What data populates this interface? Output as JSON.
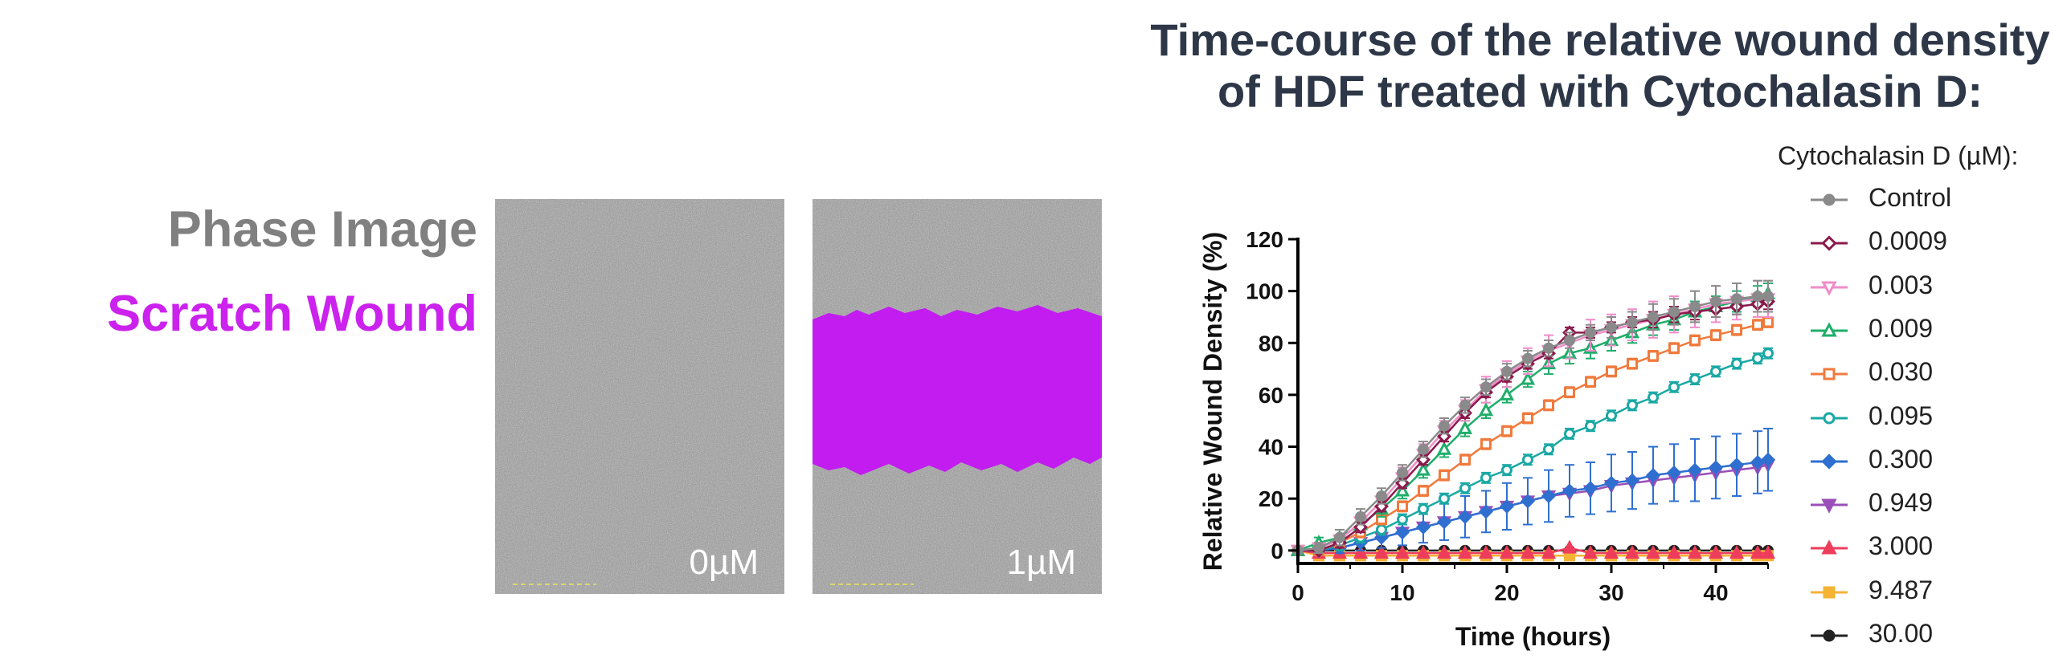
{
  "labels": {
    "phase": "Phase Image",
    "scratch": "Scratch Wound",
    "scratch_color": "#cc22ee"
  },
  "panels": [
    {
      "label": "0µM",
      "mask": false
    },
    {
      "label": "1µM",
      "mask": true
    }
  ],
  "mask_color": "#c21cf0",
  "chart_data": {
    "type": "line",
    "title": "Time-course of the relative wound density of HDF treated with Cytochalasin D:",
    "xlabel": "Time (hours)",
    "ylabel": "Relative Wound Density (%)",
    "xlim": [
      0,
      45
    ],
    "ylim": [
      -5,
      120
    ],
    "xticks": [
      "0",
      "10",
      "20",
      "30",
      "40"
    ],
    "yticks": [
      "0",
      "20",
      "40",
      "60",
      "80",
      "100",
      "120"
    ],
    "legend_title": "Cytochalasin D (µM):",
    "legend_position": "right",
    "x": [
      0,
      2,
      4,
      6,
      8,
      10,
      12,
      14,
      16,
      18,
      20,
      22,
      24,
      26,
      28,
      30,
      32,
      34,
      36,
      38,
      40,
      42,
      44,
      45
    ],
    "series": [
      {
        "name": "Control",
        "color": "#8a8a8a",
        "marker": "circle",
        "fill": true,
        "values": [
          0,
          1,
          5,
          13,
          21,
          30,
          39,
          48,
          56,
          63,
          69,
          74,
          78,
          81,
          84,
          86,
          88,
          90,
          92,
          94,
          96,
          97,
          98,
          98
        ],
        "errors": [
          1,
          2,
          3,
          3,
          3,
          3,
          3,
          3,
          3,
          3,
          3,
          3,
          3,
          3,
          3,
          4,
          4,
          5,
          5,
          6,
          6,
          6,
          6,
          6
        ]
      },
      {
        "name": "0.0009",
        "color": "#8b1a4c",
        "marker": "diamond",
        "fill": false,
        "values": [
          0,
          0,
          3,
          9,
          17,
          26,
          35,
          44,
          53,
          61,
          67,
          72,
          76,
          84,
          84,
          86,
          88,
          89,
          91,
          92,
          93,
          94,
          95,
          96
        ],
        "errors": [
          1,
          1,
          2,
          2,
          2,
          2,
          2,
          2,
          2,
          2,
          2,
          2,
          2,
          2,
          2,
          2,
          2,
          3,
          3,
          3,
          3,
          3,
          3,
          3
        ]
      },
      {
        "name": "0.003",
        "color": "#f08cc8",
        "marker": "triangle-down",
        "fill": false,
        "values": [
          0,
          1,
          4,
          11,
          19,
          28,
          37,
          46,
          54,
          62,
          68,
          73,
          77,
          80,
          83,
          85,
          87,
          89,
          91,
          93,
          95,
          96,
          97,
          97
        ],
        "errors": [
          1,
          2,
          2,
          3,
          3,
          4,
          4,
          4,
          4,
          5,
          5,
          5,
          6,
          6,
          6,
          6,
          6,
          7,
          7,
          7,
          7,
          7,
          7,
          7
        ]
      },
      {
        "name": "0.009",
        "color": "#1fae6a",
        "marker": "triangle",
        "fill": false,
        "values": [
          0,
          3,
          5,
          10,
          16,
          23,
          31,
          39,
          47,
          54,
          60,
          66,
          72,
          76,
          78,
          81,
          84,
          87,
          89,
          92,
          94,
          96,
          98,
          99
        ],
        "errors": [
          1,
          2,
          3,
          3,
          3,
          3,
          3,
          3,
          3,
          3,
          3,
          3,
          4,
          4,
          4,
          4,
          4,
          4,
          4,
          4,
          4,
          4,
          4,
          4
        ]
      },
      {
        "name": "0.030",
        "color": "#f07a3c",
        "marker": "square",
        "fill": false,
        "values": [
          0,
          0,
          3,
          7,
          12,
          17,
          23,
          29,
          35,
          41,
          46,
          51,
          56,
          61,
          65,
          69,
          72,
          75,
          78,
          81,
          83,
          85,
          87,
          88
        ],
        "errors": [
          1,
          1,
          2,
          2,
          2,
          2,
          2,
          2,
          2,
          2,
          2,
          2,
          2,
          2,
          2,
          2,
          2,
          2,
          2,
          2,
          2,
          2,
          2,
          2
        ]
      },
      {
        "name": "0.095",
        "color": "#1aa8a4",
        "marker": "circle",
        "fill": false,
        "values": [
          0,
          0,
          2,
          5,
          8,
          12,
          16,
          20,
          24,
          28,
          31,
          35,
          39,
          45,
          48,
          52,
          56,
          59,
          63,
          66,
          69,
          72,
          74,
          76
        ],
        "errors": [
          1,
          1,
          2,
          2,
          2,
          2,
          2,
          2,
          2,
          2,
          2,
          2,
          2,
          2,
          2,
          2,
          2,
          2,
          2,
          2,
          2,
          2,
          2,
          2
        ]
      },
      {
        "name": "0.300",
        "color": "#2e6fd0",
        "marker": "diamond",
        "fill": true,
        "values": [
          0,
          0,
          1,
          3,
          5,
          7,
          9,
          11,
          13,
          15,
          17,
          19,
          21,
          23,
          24,
          26,
          27,
          29,
          30,
          31,
          32,
          33,
          34,
          35
        ],
        "errors": [
          1,
          1,
          2,
          3,
          4,
          5,
          6,
          7,
          8,
          8,
          9,
          9,
          10,
          10,
          10,
          11,
          11,
          11,
          11,
          12,
          12,
          12,
          12,
          12
        ]
      },
      {
        "name": "0.949",
        "color": "#9a4fb8",
        "marker": "triangle-down",
        "fill": true,
        "values": [
          0,
          0,
          1,
          3,
          5,
          7,
          9,
          11,
          13,
          15,
          17,
          19,
          21,
          22,
          23,
          25,
          26,
          27,
          28,
          29,
          30,
          31,
          32,
          33
        ],
        "errors": [
          1,
          1,
          1,
          1,
          1,
          1,
          1,
          1,
          1,
          1,
          1,
          1,
          1,
          1,
          1,
          1,
          1,
          1,
          1,
          1,
          1,
          1,
          1,
          1
        ]
      },
      {
        "name": "3.000",
        "color": "#ee3d5c",
        "marker": "triangle",
        "fill": true,
        "values": [
          0,
          -1,
          -1,
          -1,
          -1,
          -1,
          -1,
          -1,
          -1,
          -1,
          -1,
          -1,
          -1,
          1,
          -1,
          -1,
          -1,
          -1,
          -1,
          -1,
          -1,
          -1,
          -1,
          -1
        ],
        "errors": [
          0.5,
          0.5,
          0.5,
          0.5,
          0.5,
          0.5,
          0.5,
          0.5,
          0.5,
          0.5,
          0.5,
          0.5,
          0.5,
          0.5,
          0.5,
          0.5,
          0.5,
          0.5,
          0.5,
          0.5,
          0.5,
          0.5,
          0.5,
          0.5
        ]
      },
      {
        "name": "9.487",
        "color": "#f5b335",
        "marker": "square",
        "fill": true,
        "values": [
          0,
          -2,
          -2,
          -2,
          -2,
          -2,
          -2,
          -2,
          -2,
          -2,
          -2,
          -2,
          -2,
          -2,
          -2,
          -2,
          -2,
          -2,
          -2,
          -2,
          -2,
          -2,
          -2,
          -2
        ],
        "errors": [
          0.5,
          0.5,
          0.5,
          0.5,
          0.5,
          0.5,
          0.5,
          0.5,
          0.5,
          0.5,
          0.5,
          0.5,
          0.5,
          0.5,
          0.5,
          0.5,
          0.5,
          0.5,
          0.5,
          0.5,
          0.5,
          0.5,
          0.5,
          0.5
        ]
      },
      {
        "name": "30.00",
        "color": "#222222",
        "marker": "circle",
        "fill": true,
        "values": [
          0,
          0,
          0,
          0,
          0,
          0,
          0,
          0,
          0,
          0,
          0,
          0,
          0,
          0,
          0,
          0,
          0,
          0,
          0,
          0,
          0,
          0,
          0,
          0
        ],
        "errors": [
          0.5,
          0.5,
          0.5,
          0.5,
          0.5,
          0.5,
          0.5,
          0.5,
          0.5,
          0.5,
          0.5,
          0.5,
          0.5,
          0.5,
          0.5,
          0.5,
          0.5,
          0.5,
          0.5,
          0.5,
          0.5,
          0.5,
          0.5,
          0.5
        ]
      }
    ]
  }
}
